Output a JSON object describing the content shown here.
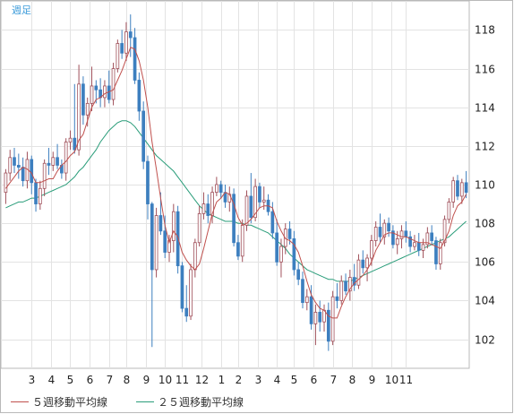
{
  "period_label": "週足",
  "legend": [
    {
      "label": "５週移動平均線",
      "color": "#c0504d"
    },
    {
      "label": "２５週移動平均線",
      "color": "#2a9d7a"
    }
  ],
  "chart_data": {
    "type": "candlestick",
    "title": "",
    "xlabel": "",
    "ylabel": "",
    "ylim": [
      100.5,
      119.5
    ],
    "y_ticks": [
      102,
      104,
      106,
      108,
      110,
      112,
      114,
      116,
      118
    ],
    "x_tick_labels": [
      "3",
      "4",
      "5",
      "6",
      "7",
      "8",
      "9",
      "10",
      "11",
      "12",
      "1",
      "2",
      "3",
      "4",
      "5",
      "6",
      "7",
      "8",
      "9",
      "10",
      "11"
    ],
    "x_tick_weeks": [
      6,
      10.5,
      15,
      19.5,
      24,
      28,
      32.5,
      37,
      41,
      45.5,
      50,
      54,
      58.5,
      63,
      67,
      71.5,
      76,
      80.5,
      85,
      89.5,
      93
    ],
    "up_color": "#ffffff",
    "down_color": "#3d7fbf",
    "ohlc": [
      [
        109.6,
        110.8,
        109.0,
        110.6
      ],
      [
        110.6,
        111.8,
        110.2,
        111.4
      ],
      [
        111.4,
        111.9,
        110.6,
        111.0
      ],
      [
        111.0,
        111.6,
        110.3,
        110.9
      ],
      [
        110.9,
        111.4,
        109.9,
        110.2
      ],
      [
        110.2,
        111.7,
        109.8,
        111.3
      ],
      [
        111.3,
        111.5,
        109.5,
        110.1
      ],
      [
        110.1,
        110.3,
        108.6,
        109.0
      ],
      [
        109.0,
        110.2,
        108.7,
        109.8
      ],
      [
        109.8,
        111.3,
        109.4,
        111.1
      ],
      [
        111.1,
        111.9,
        110.5,
        111.0
      ],
      [
        111.0,
        111.7,
        110.7,
        111.4
      ],
      [
        111.4,
        112.1,
        110.8,
        111.0
      ],
      [
        111.0,
        111.3,
        110.3,
        110.6
      ],
      [
        110.6,
        112.4,
        110.2,
        112.2
      ],
      [
        112.2,
        112.8,
        111.8,
        112.4
      ],
      [
        112.4,
        115.2,
        111.6,
        111.8
      ],
      [
        111.8,
        116.2,
        111.5,
        115.2
      ],
      [
        115.2,
        115.6,
        113.1,
        113.6
      ],
      [
        113.6,
        114.5,
        113.0,
        114.2
      ],
      [
        114.2,
        116.1,
        113.8,
        115.1
      ],
      [
        115.1,
        115.4,
        114.2,
        114.9
      ],
      [
        114.9,
        115.5,
        114.0,
        114.5
      ],
      [
        114.5,
        115.4,
        114.0,
        115.1
      ],
      [
        115.1,
        115.9,
        114.2,
        114.4
      ],
      [
        114.4,
        116.3,
        114.1,
        116.0
      ],
      [
        116.0,
        117.5,
        115.8,
        117.3
      ],
      [
        117.3,
        118.0,
        116.5,
        116.8
      ],
      [
        116.8,
        118.4,
        116.4,
        117.9
      ],
      [
        117.9,
        118.8,
        116.6,
        117.6
      ],
      [
        117.6,
        118.1,
        115.2,
        115.4
      ],
      [
        115.4,
        115.8,
        113.3,
        113.8
      ],
      [
        113.8,
        114.3,
        110.8,
        111.2
      ],
      [
        111.2,
        111.5,
        108.2,
        109.0
      ],
      [
        109.0,
        109.1,
        101.6,
        105.6
      ],
      [
        105.6,
        108.8,
        105.2,
        108.4
      ],
      [
        108.4,
        109.6,
        107.4,
        107.6
      ],
      [
        107.6,
        108.4,
        106.2,
        106.5
      ],
      [
        106.5,
        107.4,
        106.0,
        107.1
      ],
      [
        107.1,
        109.0,
        106.5,
        108.6
      ],
      [
        108.6,
        108.9,
        105.4,
        105.8
      ],
      [
        105.8,
        106.0,
        103.4,
        103.6
      ],
      [
        103.6,
        104.8,
        102.9,
        103.2
      ],
      [
        103.2,
        105.9,
        103.0,
        105.6
      ],
      [
        105.6,
        107.2,
        105.2,
        107.0
      ],
      [
        107.0,
        108.9,
        106.8,
        108.5
      ],
      [
        108.5,
        109.6,
        108.2,
        109.0
      ],
      [
        109.0,
        109.5,
        108.0,
        108.4
      ],
      [
        108.4,
        109.9,
        108.0,
        109.6
      ],
      [
        109.6,
        110.4,
        109.4,
        110.0
      ],
      [
        110.0,
        110.2,
        109.3,
        109.6
      ],
      [
        109.6,
        110.0,
        108.8,
        109.1
      ],
      [
        109.1,
        109.9,
        108.6,
        109.5
      ],
      [
        109.5,
        109.8,
        106.8,
        107.0
      ],
      [
        107.0,
        107.4,
        106.1,
        106.3
      ],
      [
        106.3,
        108.2,
        106.0,
        107.9
      ],
      [
        107.9,
        109.7,
        107.6,
        109.4
      ],
      [
        109.4,
        110.6,
        108.0,
        108.3
      ],
      [
        108.3,
        110.3,
        108.1,
        109.9
      ],
      [
        109.9,
        110.1,
        108.8,
        109.1
      ],
      [
        109.1,
        109.9,
        108.7,
        109.2
      ],
      [
        109.2,
        109.5,
        108.4,
        108.6
      ],
      [
        108.6,
        109.1,
        107.2,
        107.5
      ],
      [
        107.5,
        108.2,
        105.8,
        106.0
      ],
      [
        106.0,
        107.2,
        105.2,
        106.8
      ],
      [
        106.8,
        108.0,
        106.4,
        107.7
      ],
      [
        107.7,
        108.1,
        106.9,
        107.2
      ],
      [
        107.2,
        107.6,
        105.3,
        105.6
      ],
      [
        105.6,
        106.0,
        104.8,
        105.1
      ],
      [
        105.1,
        105.5,
        103.6,
        103.9
      ],
      [
        103.9,
        104.6,
        103.5,
        104.2
      ],
      [
        104.2,
        104.8,
        102.5,
        102.8
      ],
      [
        102.8,
        103.8,
        101.7,
        103.4
      ],
      [
        103.4,
        104.0,
        102.4,
        102.9
      ],
      [
        102.9,
        103.8,
        102.4,
        103.5
      ],
      [
        103.5,
        103.9,
        101.4,
        101.9
      ],
      [
        101.9,
        104.5,
        101.7,
        104.2
      ],
      [
        104.2,
        104.9,
        103.6,
        104.0
      ],
      [
        104.0,
        105.3,
        103.8,
        105.0
      ],
      [
        105.0,
        105.4,
        104.3,
        104.5
      ],
      [
        104.5,
        105.6,
        104.0,
        105.2
      ],
      [
        105.2,
        105.9,
        104.5,
        104.8
      ],
      [
        104.8,
        106.4,
        104.6,
        106.1
      ],
      [
        106.1,
        106.6,
        105.4,
        105.7
      ],
      [
        105.7,
        106.4,
        105.0,
        106.2
      ],
      [
        106.2,
        107.4,
        105.8,
        107.1
      ],
      [
        107.1,
        108.1,
        106.8,
        107.8
      ],
      [
        107.8,
        108.5,
        107.0,
        107.3
      ],
      [
        107.3,
        108.2,
        106.9,
        108.0
      ],
      [
        108.0,
        108.3,
        107.3,
        107.6
      ],
      [
        107.6,
        107.9,
        106.7,
        106.9
      ],
      [
        106.9,
        107.6,
        106.4,
        107.2
      ],
      [
        107.2,
        107.9,
        106.7,
        107.6
      ],
      [
        107.6,
        108.1,
        107.0,
        107.3
      ],
      [
        107.3,
        107.6,
        106.5,
        106.8
      ],
      [
        106.8,
        107.4,
        106.6,
        107.0
      ],
      [
        107.0,
        107.5,
        106.3,
        106.6
      ],
      [
        106.6,
        107.2,
        106.2,
        106.9
      ],
      [
        106.9,
        107.8,
        106.7,
        107.5
      ],
      [
        107.5,
        107.9,
        106.9,
        107.1
      ],
      [
        107.1,
        107.3,
        105.6,
        105.9
      ],
      [
        105.9,
        107.2,
        105.6,
        107.0
      ],
      [
        107.0,
        108.4,
        106.8,
        108.2
      ],
      [
        108.2,
        109.3,
        108.0,
        109.1
      ],
      [
        109.1,
        110.4,
        108.8,
        110.2
      ],
      [
        110.2,
        110.5,
        109.2,
        109.4
      ],
      [
        109.4,
        110.3,
        109.0,
        110.1
      ],
      [
        110.1,
        110.7,
        109.3,
        109.6
      ]
    ],
    "ma5": [
      109.8,
      110.1,
      110.4,
      110.7,
      110.9,
      110.8,
      110.6,
      110.1,
      110.1,
      110.2,
      110.3,
      110.3,
      110.7,
      111.0,
      111.2,
      111.5,
      111.7,
      112.3,
      112.6,
      113.3,
      114.0,
      114.4,
      114.5,
      114.7,
      114.8,
      114.9,
      115.4,
      115.9,
      116.5,
      117.1,
      117.0,
      116.4,
      115.4,
      114.0,
      112.2,
      110.8,
      109.3,
      107.9,
      107.0,
      107.6,
      107.3,
      106.5,
      106.1,
      105.8,
      105.6,
      105.9,
      106.7,
      107.6,
      108.5,
      109.1,
      109.3,
      109.6,
      109.5,
      109.0,
      108.3,
      107.9,
      108.0,
      108.2,
      108.5,
      108.8,
      108.9,
      108.9,
      108.8,
      108.1,
      107.6,
      107.2,
      107.1,
      106.9,
      106.5,
      105.8,
      105.0,
      104.3,
      103.9,
      103.6,
      103.5,
      103.2,
      103.1,
      103.1,
      103.7,
      104.2,
      104.6,
      104.9,
      105.1,
      105.3,
      105.6,
      106.0,
      106.6,
      107.0,
      107.4,
      107.5,
      107.5,
      107.4,
      107.3,
      107.3,
      107.2,
      107.1,
      107.0,
      107.0,
      107.0,
      106.9,
      106.8,
      106.7,
      107.1,
      107.6,
      108.4,
      108.9,
      109.1,
      109.5
    ],
    "ma25": [
      108.8,
      108.9,
      109.0,
      109.1,
      109.1,
      109.2,
      109.3,
      109.3,
      109.4,
      109.5,
      109.6,
      109.7,
      109.8,
      109.9,
      110.0,
      110.2,
      110.4,
      110.7,
      110.9,
      111.2,
      111.5,
      111.8,
      112.2,
      112.5,
      112.8,
      113.0,
      113.2,
      113.3,
      113.3,
      113.2,
      113.0,
      112.7,
      112.4,
      112.1,
      111.8,
      111.5,
      111.3,
      111.1,
      110.9,
      110.7,
      110.4,
      110.1,
      109.8,
      109.5,
      109.2,
      108.9,
      108.7,
      108.5,
      108.4,
      108.3,
      108.2,
      108.1,
      108.1,
      108.1,
      108.0,
      108.0,
      107.9,
      107.9,
      107.8,
      107.7,
      107.6,
      107.5,
      107.3,
      107.1,
      106.9,
      106.7,
      106.4,
      106.2,
      106.0,
      105.8,
      105.6,
      105.5,
      105.4,
      105.3,
      105.2,
      105.1,
      105.1,
      105.0,
      105.0,
      105.0,
      105.0,
      105.1,
      105.2,
      105.3,
      105.4,
      105.5,
      105.6,
      105.7,
      105.8,
      105.9,
      106.0,
      106.1,
      106.2,
      106.3,
      106.4,
      106.5,
      106.6,
      106.7,
      106.8,
      106.9,
      107.0,
      107.1,
      107.2,
      107.3,
      107.5,
      107.7,
      107.9,
      108.1
    ]
  }
}
